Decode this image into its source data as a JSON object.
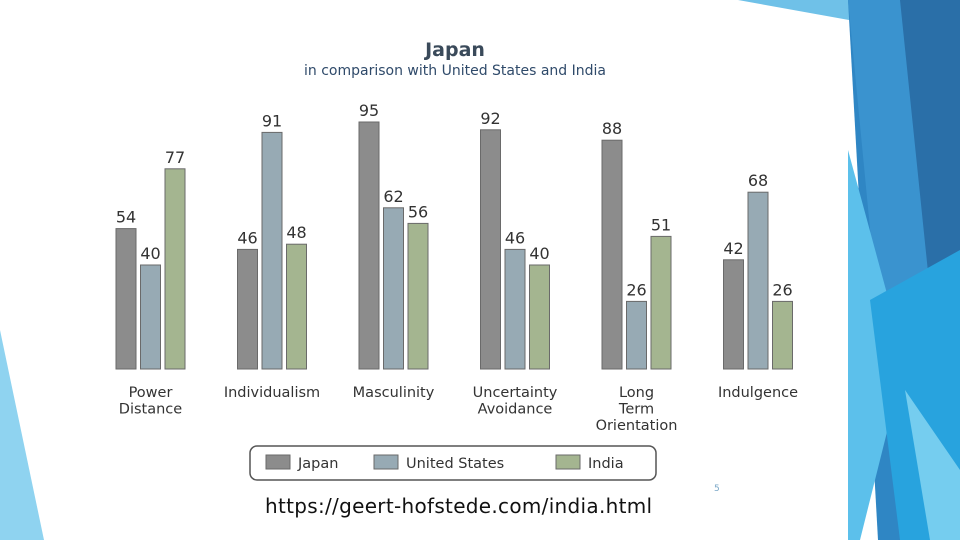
{
  "slide": {
    "url": "https://geert-hofstede.com/india.html",
    "number": "5"
  },
  "chart_data": {
    "type": "bar",
    "title": "Japan",
    "subtitle": "in comparison with United States and India",
    "categories": [
      [
        "Power",
        "Distance"
      ],
      [
        "Individualism"
      ],
      [
        "Masculinity"
      ],
      [
        "Uncertainty",
        "Avoidance"
      ],
      [
        "Long",
        "Term",
        "Orientation"
      ],
      [
        "Indulgence"
      ]
    ],
    "series": [
      {
        "name": "Japan",
        "values": [
          54,
          46,
          95,
          92,
          88,
          42
        ],
        "color": "#8c8c8c"
      },
      {
        "name": "United States",
        "values": [
          40,
          91,
          62,
          46,
          26,
          68
        ],
        "color": "#97aab4"
      },
      {
        "name": "India",
        "values": [
          77,
          48,
          56,
          40,
          51,
          26
        ],
        "color": "#a4b590"
      }
    ],
    "ylim": [
      0,
      95
    ],
    "grid": false,
    "legend": "bottom"
  }
}
